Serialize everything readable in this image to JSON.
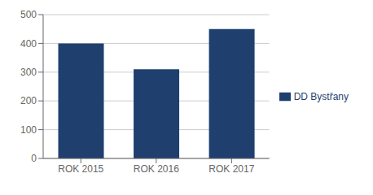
{
  "chart_data": {
    "type": "bar",
    "categories": [
      "ROK 2015",
      "ROK 2016",
      "ROK 2017"
    ],
    "series": [
      {
        "name": "DD Bystřany",
        "color": "#1F3F6E",
        "values": [
          400,
          310,
          450
        ]
      }
    ],
    "ylim": [
      0,
      500
    ],
    "yticks": [
      0,
      100,
      200,
      300,
      400,
      500
    ],
    "grid": true,
    "legend": "right"
  }
}
